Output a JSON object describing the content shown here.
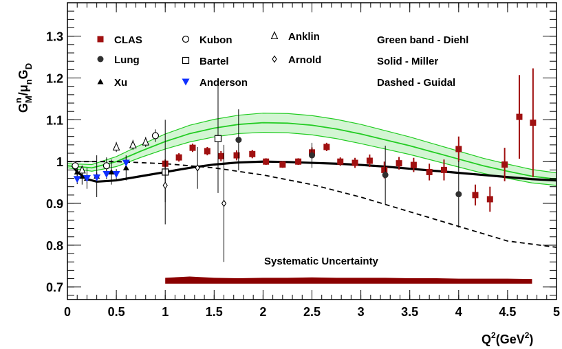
{
  "chart_data": {
    "type": "scatter",
    "xlabel": {
      "base": "Q",
      "sup1": "2",
      "mid": "(GeV",
      "sup2": "2",
      "end": ")"
    },
    "ylabel": {
      "G": "G",
      "n": "n",
      "M": "M",
      "slash": "/",
      "mu": "μ",
      "n2": "n",
      "G2": "G",
      "D": "D"
    },
    "xlim": [
      0,
      5
    ],
    "ylim": [
      0.67,
      1.38
    ],
    "xticks": [
      {
        "v": 0,
        "label": "0"
      },
      {
        "v": 0.5,
        "label": "0.5"
      },
      {
        "v": 1,
        "label": "1"
      },
      {
        "v": 1.5,
        "label": "1.5"
      },
      {
        "v": 2,
        "label": "2"
      },
      {
        "v": 2.5,
        "label": "2.5"
      },
      {
        "v": 3,
        "label": "3"
      },
      {
        "v": 3.5,
        "label": "3.5"
      },
      {
        "v": 4,
        "label": "4"
      },
      {
        "v": 4.5,
        "label": "4.5"
      },
      {
        "v": 5,
        "label": "5"
      }
    ],
    "yticks": [
      {
        "v": 0.7,
        "label": "0.7"
      },
      {
        "v": 0.8,
        "label": "0.8"
      },
      {
        "v": 0.9,
        "label": "0.9"
      },
      {
        "v": 1.0,
        "label": "1"
      },
      {
        "v": 1.1,
        "label": "1.1"
      },
      {
        "v": 1.2,
        "label": "1.2"
      },
      {
        "v": 1.3,
        "label": "1.3"
      }
    ],
    "series": [
      {
        "name": "CLAS",
        "marker": "filled-square",
        "color": "#a01010",
        "points": [
          [
            1.0,
            0.995,
            0.01
          ],
          [
            1.14,
            1.01,
            0.01
          ],
          [
            1.28,
            1.033,
            0.01
          ],
          [
            1.43,
            1.025,
            0.01
          ],
          [
            1.57,
            1.013,
            0.012
          ],
          [
            1.73,
            1.015,
            0.012
          ],
          [
            1.89,
            1.018,
            0.01
          ],
          [
            2.03,
            1.0,
            0.008
          ],
          [
            2.2,
            0.993,
            0.008
          ],
          [
            2.36,
            1.0,
            0.008
          ],
          [
            2.5,
            1.022,
            0.012
          ],
          [
            2.65,
            1.035,
            0.01
          ],
          [
            2.79,
            1.0,
            0.01
          ],
          [
            2.94,
            0.997,
            0.012
          ],
          [
            3.09,
            1.002,
            0.015
          ],
          [
            3.24,
            0.98,
            0.02
          ],
          [
            3.39,
            0.996,
            0.015
          ],
          [
            3.54,
            0.992,
            0.017
          ],
          [
            3.7,
            0.975,
            0.02
          ],
          [
            3.85,
            0.98,
            0.025
          ],
          [
            4.0,
            1.03,
            0.03
          ],
          [
            4.17,
            0.92,
            0.025
          ],
          [
            4.32,
            0.91,
            0.03
          ],
          [
            4.47,
            0.993,
            0.04
          ],
          [
            4.62,
            1.107,
            0.1
          ],
          [
            4.76,
            1.093,
            0.13
          ]
        ]
      },
      {
        "name": "Lung",
        "marker": "filled-circle",
        "color": "#303030",
        "points": [
          [
            1.75,
            1.052,
            0.073
          ],
          [
            2.5,
            1.015,
            0.03
          ],
          [
            3.25,
            0.968,
            0.07
          ],
          [
            4.0,
            0.922,
            0.08
          ]
        ]
      },
      {
        "name": "Xu",
        "marker": "filled-triangle",
        "color": "#000000",
        "points": [
          [
            0.1,
            0.975,
            0.02
          ],
          [
            0.15,
            0.965,
            0.02
          ],
          [
            0.2,
            0.96,
            0.025
          ],
          [
            0.3,
            0.965,
            0.05
          ],
          [
            0.45,
            0.975,
            0.03
          ],
          [
            0.6,
            0.985,
            0.03
          ]
        ]
      },
      {
        "name": "Kubon",
        "marker": "open-circle",
        "color": "#000000",
        "points": [
          [
            0.08,
            0.99,
            0.01
          ],
          [
            0.4,
            0.99,
            0.02
          ],
          [
            0.9,
            1.062,
            0.015
          ]
        ]
      },
      {
        "name": "Bartel",
        "marker": "open-square",
        "color": "#000000",
        "points": [
          [
            1.0,
            0.975,
            0.125
          ],
          [
            1.54,
            1.055,
            0.13
          ]
        ]
      },
      {
        "name": "Anderson",
        "marker": "filled-inverted-triangle",
        "color": "#1030ff",
        "points": [
          [
            0.1,
            0.958,
            0.012
          ],
          [
            0.2,
            0.96,
            0.012
          ],
          [
            0.3,
            0.962,
            0.012
          ],
          [
            0.4,
            0.97,
            0.012
          ],
          [
            0.5,
            0.97,
            0.012
          ],
          [
            0.6,
            0.997,
            0.015
          ]
        ]
      },
      {
        "name": "Anklin",
        "marker": "open-triangle",
        "color": "#000000",
        "points": [
          [
            0.15,
            0.98,
            0.01
          ],
          [
            0.5,
            1.035,
            0.012
          ],
          [
            0.67,
            1.04,
            0.012
          ],
          [
            0.8,
            1.047,
            0.012
          ]
        ]
      },
      {
        "name": "Arnold",
        "marker": "open-diamond",
        "color": "#000000",
        "points": [
          [
            1.0,
            0.943,
            0.04
          ],
          [
            1.33,
            0.985,
            0.05
          ],
          [
            1.6,
            0.9,
            0.14
          ]
        ]
      }
    ],
    "curves": {
      "miller": {
        "name": "Solid - Miller",
        "color": "#000000",
        "style": "solid",
        "x": [
          0.05,
          0.1,
          0.2,
          0.3,
          0.5,
          0.75,
          1.0,
          1.25,
          1.5,
          1.75,
          2.0,
          2.25,
          2.5,
          2.75,
          3.0,
          3.25,
          3.5,
          3.75,
          4.0,
          4.25,
          4.5,
          4.75,
          5.0
        ],
        "y": [
          0.99,
          0.975,
          0.958,
          0.952,
          0.955,
          0.965,
          0.975,
          0.985,
          0.993,
          0.998,
          1.0,
          0.999,
          0.997,
          0.995,
          0.992,
          0.988,
          0.983,
          0.978,
          0.973,
          0.968,
          0.963,
          0.958,
          0.955
        ]
      },
      "guidal": {
        "name": "Dashed - Guidal",
        "color": "#000000",
        "style": "dashed",
        "x": [
          0.0,
          0.5,
          1.0,
          1.5,
          2.0,
          2.5,
          3.0,
          3.5,
          4.0,
          4.5,
          5.0
        ],
        "y": [
          1.0,
          1.0,
          0.995,
          0.985,
          0.968,
          0.945,
          0.915,
          0.88,
          0.845,
          0.81,
          0.795
        ]
      },
      "diehl": {
        "name": "Green band - Diehl",
        "color": "#22cc22",
        "style": "band",
        "x": [
          0.0,
          0.25,
          0.5,
          0.75,
          1.0,
          1.25,
          1.5,
          1.75,
          2.0,
          2.25,
          2.5,
          2.75,
          3.0,
          3.25,
          3.5,
          3.75,
          4.0,
          4.25,
          4.5,
          4.75,
          5.0
        ],
        "center": [
          0.99,
          0.985,
          1.0,
          1.025,
          1.048,
          1.067,
          1.08,
          1.089,
          1.093,
          1.092,
          1.087,
          1.078,
          1.066,
          1.052,
          1.038,
          1.022,
          1.006,
          0.99,
          0.977,
          0.965,
          0.958
        ],
        "half_width": [
          0.005,
          0.008,
          0.012,
          0.015,
          0.018,
          0.02,
          0.021,
          0.022,
          0.023,
          0.023,
          0.023,
          0.023,
          0.023,
          0.022,
          0.021,
          0.02,
          0.019,
          0.018,
          0.017,
          0.016,
          0.015
        ]
      }
    },
    "systematic_band": {
      "label": "Systematic Uncertainty",
      "color": "#8b0000",
      "x": [
        1.0,
        1.25,
        1.5,
        1.75,
        2.0,
        2.25,
        2.5,
        2.75,
        3.0,
        3.25,
        3.5,
        3.75,
        4.0,
        4.25,
        4.5,
        4.75
      ],
      "top": [
        0.722,
        0.725,
        0.722,
        0.721,
        0.722,
        0.722,
        0.723,
        0.722,
        0.722,
        0.722,
        0.721,
        0.721,
        0.72,
        0.72,
        0.72,
        0.719
      ],
      "bottom": [
        0.708,
        0.708,
        0.708,
        0.708,
        0.708,
        0.708,
        0.708,
        0.708,
        0.708,
        0.708,
        0.708,
        0.708,
        0.708,
        0.708,
        0.708,
        0.708
      ]
    },
    "legend_text": [
      "Green band - Diehl",
      "Solid - Miller",
      "Dashed - Guidal"
    ]
  }
}
